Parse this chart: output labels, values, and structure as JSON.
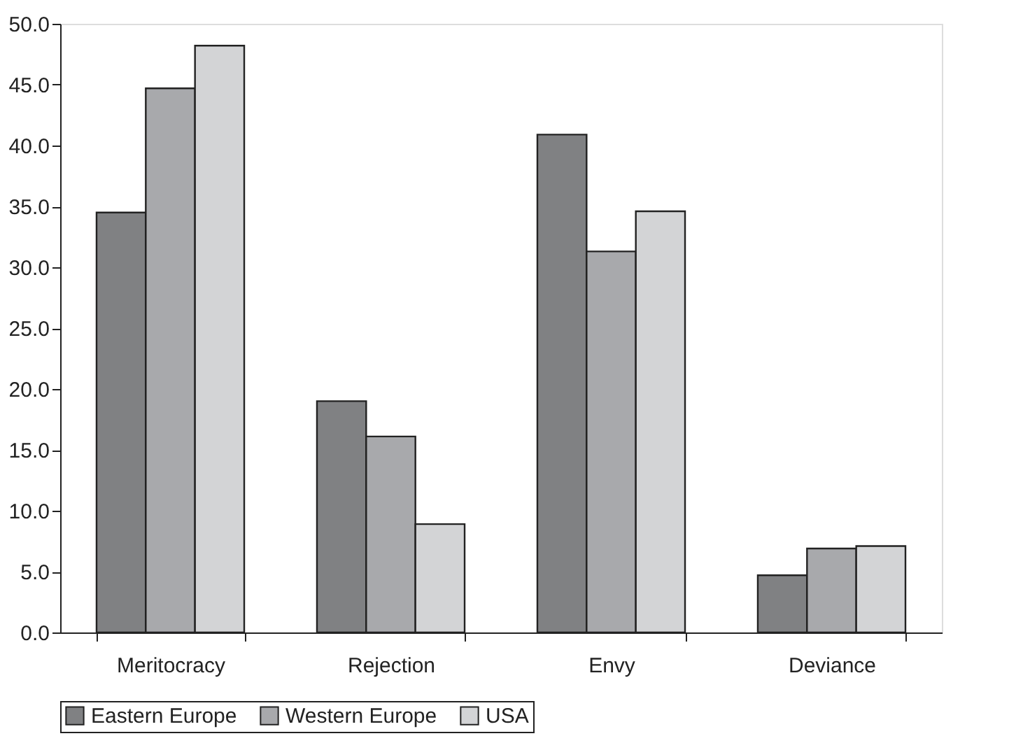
{
  "chart_data": {
    "type": "bar",
    "categories": [
      "Meritocracy",
      "Rejection",
      "Envy",
      "Deviance"
    ],
    "series": [
      {
        "name": "Eastern Europe",
        "color": "#808183",
        "values": [
          34.5,
          19.0,
          40.9,
          4.7
        ]
      },
      {
        "name": "Western Europe",
        "color": "#a8a9ac",
        "values": [
          44.7,
          16.1,
          31.3,
          6.9
        ]
      },
      {
        "name": "USA",
        "color": "#d3d4d6",
        "values": [
          48.2,
          8.9,
          34.6,
          7.1
        ]
      }
    ],
    "ylim": [
      0,
      50
    ],
    "yticks": [
      {
        "value": 0,
        "label": "0.0"
      },
      {
        "value": 5,
        "label": "5.0"
      },
      {
        "value": 10,
        "label": "10.0"
      },
      {
        "value": 15,
        "label": "15.0"
      },
      {
        "value": 20,
        "label": "20.0"
      },
      {
        "value": 25,
        "label": "25.0"
      },
      {
        "value": 30,
        "label": "30.0"
      },
      {
        "value": 35,
        "label": "35.0"
      },
      {
        "value": 40,
        "label": "40.0"
      },
      {
        "value": 45,
        "label": "45.0"
      },
      {
        "value": 50,
        "label": "50.0"
      }
    ],
    "grid": false,
    "legend": "bottom"
  }
}
